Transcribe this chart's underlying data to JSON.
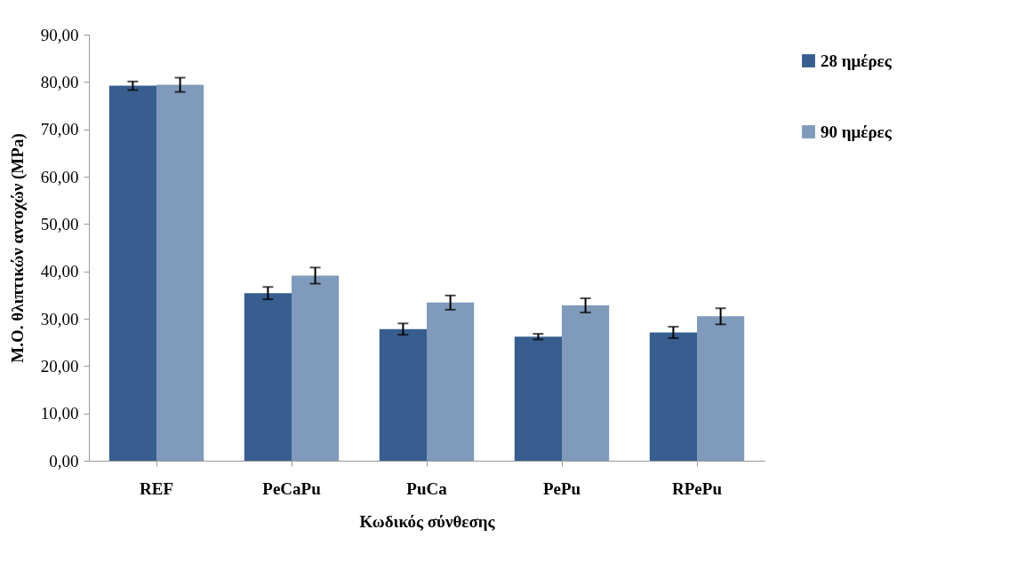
{
  "chart_data": {
    "type": "bar",
    "xlabel": "Κωδικός σύνθεσης",
    "ylabel": "Μ.Ο. θλιπτικών αντοχών (MPa)",
    "categories": [
      "REF",
      "PeCaPu",
      "PuCa",
      "PePu",
      "RPePu"
    ],
    "series": [
      {
        "name": "28 ημέρες",
        "color": "#375e8f",
        "values": [
          79.2,
          35.4,
          27.8,
          26.2,
          27.1
        ],
        "errors": [
          0.9,
          1.3,
          1.2,
          0.6,
          1.2
        ]
      },
      {
        "name": "90 ημέρες",
        "color": "#7f9aba",
        "values": [
          79.4,
          39.1,
          33.4,
          32.8,
          30.5
        ],
        "errors": [
          1.5,
          1.7,
          1.5,
          1.5,
          1.7
        ]
      }
    ],
    "ylim": [
      0,
      90
    ],
    "yticks": [
      {
        "value": 0,
        "label": "0,00"
      },
      {
        "value": 10,
        "label": "10,00"
      },
      {
        "value": 20,
        "label": "20,00"
      },
      {
        "value": 30,
        "label": "30,00"
      },
      {
        "value": 40,
        "label": "40,00"
      },
      {
        "value": 50,
        "label": "50,00"
      },
      {
        "value": 60,
        "label": "60,00"
      },
      {
        "value": 70,
        "label": "70,00"
      },
      {
        "value": 80,
        "label": "80,00"
      },
      {
        "value": 90,
        "label": "90,00"
      }
    ],
    "grid": false,
    "legend": "top right"
  }
}
